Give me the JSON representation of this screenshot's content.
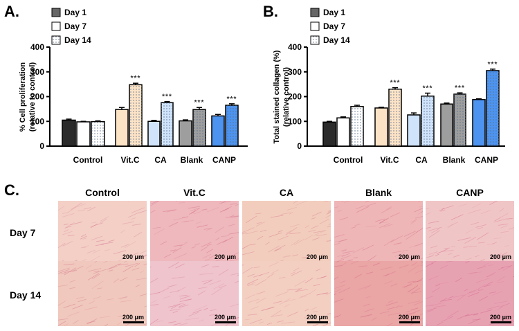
{
  "colors": {
    "day1": "#2b2b2b",
    "day7": "#ffffff",
    "vitc": "#fde3c6",
    "ca": "#cfe3fb",
    "blank": "#9e9e9e",
    "canp": "#4d94f0",
    "micro_base": "#efc7bd",
    "micro_fiber": "#c94a72"
  },
  "panel_a": {
    "letter": "A.",
    "legend": [
      "Day 1",
      "Day 7",
      "Day 14"
    ]
  },
  "panel_b": {
    "letter": "B.",
    "legend": [
      "Day 1",
      "Day 7",
      "Day 14"
    ]
  },
  "chart_data": [
    {
      "type": "bar",
      "panel": "A",
      "ylabel": "% Cell proliferation (retative to control)",
      "ylabel_lines": [
        "% Cell proliferation",
        "(retative to control)"
      ],
      "ylim": [
        0,
        400
      ],
      "yticks": [
        0,
        100,
        200,
        300,
        400
      ],
      "categories": [
        "Control",
        "Vit.C",
        "CA",
        "Blank",
        "CANP"
      ],
      "bars": [
        {
          "group": "Control",
          "series": "Day 1",
          "value": 105,
          "err": 4,
          "fill": "day1",
          "pattern": "none",
          "sig": ""
        },
        {
          "group": "Control",
          "series": "Day 7",
          "value": 98,
          "err": 2,
          "fill": "day7",
          "pattern": "none",
          "sig": ""
        },
        {
          "group": "Control",
          "series": "Day 14",
          "value": 99,
          "err": 3,
          "fill": "day7",
          "pattern": "dots",
          "sig": ""
        },
        {
          "group": "Vit.C",
          "series": "Day 7",
          "value": 148,
          "err": 8,
          "fill": "vitc",
          "pattern": "none",
          "sig": ""
        },
        {
          "group": "Vit.C",
          "series": "Day 14",
          "value": 248,
          "err": 6,
          "fill": "vitc",
          "pattern": "dots",
          "sig": "***"
        },
        {
          "group": "CA",
          "series": "Day 7",
          "value": 100,
          "err": 4,
          "fill": "ca",
          "pattern": "none",
          "sig": ""
        },
        {
          "group": "CA",
          "series": "Day 14",
          "value": 176,
          "err": 4,
          "fill": "ca",
          "pattern": "dots",
          "sig": "***"
        },
        {
          "group": "Blank",
          "series": "Day 7",
          "value": 102,
          "err": 4,
          "fill": "blank",
          "pattern": "none",
          "sig": ""
        },
        {
          "group": "Blank",
          "series": "Day 14",
          "value": 148,
          "err": 8,
          "fill": "blank",
          "pattern": "dots",
          "sig": "***"
        },
        {
          "group": "CANP",
          "series": "Day 7",
          "value": 122,
          "err": 6,
          "fill": "canp",
          "pattern": "none",
          "sig": ""
        },
        {
          "group": "CANP",
          "series": "Day 14",
          "value": 165,
          "err": 6,
          "fill": "canp",
          "pattern": "dots",
          "sig": "***"
        }
      ]
    },
    {
      "type": "bar",
      "panel": "B",
      "ylabel": "Total stained collagen (%) (relative control)",
      "ylabel_lines": [
        "Total stained collagen (%)",
        "(relative control)"
      ],
      "ylim": [
        0,
        400
      ],
      "yticks": [
        0,
        100,
        200,
        300,
        400
      ],
      "categories": [
        "Control",
        "Vit.C",
        "CA",
        "Blank",
        "CANP"
      ],
      "bars": [
        {
          "group": "Control",
          "series": "Day 1",
          "value": 97,
          "err": 3,
          "fill": "day1",
          "pattern": "none",
          "sig": ""
        },
        {
          "group": "Control",
          "series": "Day 7",
          "value": 114,
          "err": 4,
          "fill": "day7",
          "pattern": "none",
          "sig": ""
        },
        {
          "group": "Control",
          "series": "Day 14",
          "value": 160,
          "err": 5,
          "fill": "day7",
          "pattern": "dots",
          "sig": ""
        },
        {
          "group": "Vit.C",
          "series": "Day 7",
          "value": 154,
          "err": 3,
          "fill": "vitc",
          "pattern": "none",
          "sig": ""
        },
        {
          "group": "Vit.C",
          "series": "Day 14",
          "value": 230,
          "err": 6,
          "fill": "vitc",
          "pattern": "dots",
          "sig": "***"
        },
        {
          "group": "CA",
          "series": "Day 7",
          "value": 126,
          "err": 8,
          "fill": "ca",
          "pattern": "none",
          "sig": ""
        },
        {
          "group": "CA",
          "series": "Day 14",
          "value": 202,
          "err": 12,
          "fill": "ca",
          "pattern": "dots",
          "sig": "***"
        },
        {
          "group": "Blank",
          "series": "Day 7",
          "value": 170,
          "err": 4,
          "fill": "blank",
          "pattern": "none",
          "sig": ""
        },
        {
          "group": "Blank",
          "series": "Day 14",
          "value": 210,
          "err": 5,
          "fill": "blank",
          "pattern": "dots",
          "sig": "***"
        },
        {
          "group": "CANP",
          "series": "Day 7",
          "value": 188,
          "err": 3,
          "fill": "canp",
          "pattern": "none",
          "sig": ""
        },
        {
          "group": "CANP",
          "series": "Day 14",
          "value": 305,
          "err": 6,
          "fill": "canp",
          "pattern": "dots",
          "sig": "***"
        }
      ]
    }
  ],
  "panel_c": {
    "letter": "C.",
    "columns": [
      "Control",
      "Vit.C",
      "CA",
      "Blank",
      "CANP"
    ],
    "rows": [
      "Day 7",
      "Day 14"
    ],
    "scale_bar": "200 μm",
    "tints": [
      [
        "#f3cfc6",
        "#eeb8bc",
        "#f2cdbd",
        "#eeb6b7",
        "#f0c5c6"
      ],
      [
        "#f0c8bd",
        "#efc4cc",
        "#f3cfc1",
        "#eaa5a5",
        "#e7a2b2"
      ]
    ]
  }
}
